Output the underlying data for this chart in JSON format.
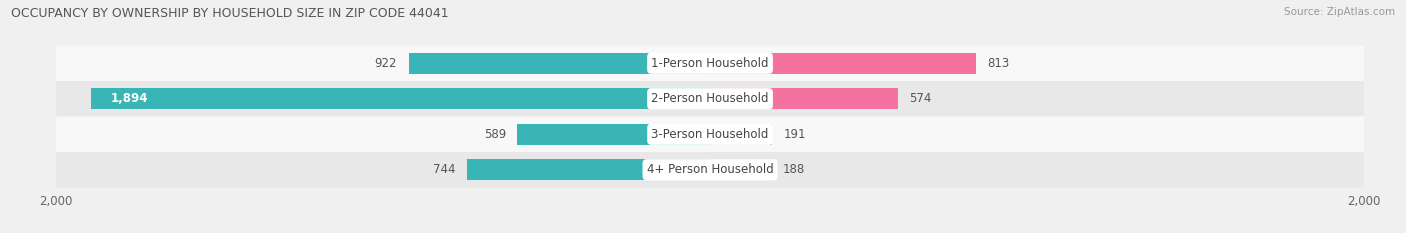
{
  "title": "OCCUPANCY BY OWNERSHIP BY HOUSEHOLD SIZE IN ZIP CODE 44041",
  "source": "Source: ZipAtlas.com",
  "categories": [
    "1-Person Household",
    "2-Person Household",
    "3-Person Household",
    "4+ Person Household"
  ],
  "owner_values": [
    922,
    1894,
    589,
    744
  ],
  "renter_values": [
    813,
    574,
    191,
    188
  ],
  "max_value": 2000,
  "owner_color": "#3ab5b5",
  "renter_colors": [
    "#f472a0",
    "#f472a0",
    "#f9a8c9",
    "#f9b8d0"
  ],
  "bg_color": "#f0f0f0",
  "row_colors": [
    "#f8f8f8",
    "#e8e8e8"
  ],
  "tick_label": "2,000",
  "title_color": "#555555",
  "value_color": "#555555",
  "value_color_on_bar": "#ffffff",
  "label_on_bar_index": 1
}
